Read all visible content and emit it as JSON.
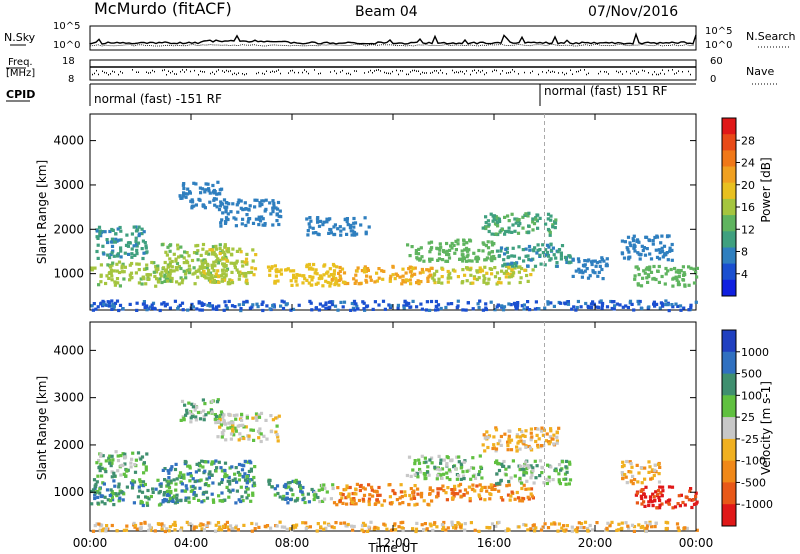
{
  "header": {
    "station": "McMurdo (fitACF)",
    "beam": "Beam 04",
    "date": "07/Nov/2016"
  },
  "top_panel_labels": {
    "nsky": "N.Sky",
    "nsearch": "N.Search",
    "freq": "Freq.",
    "freq_unit": "[MHz]",
    "nave": "Nave",
    "cpid": "CPID",
    "nsky_ticks": [
      "10^5",
      "10^0"
    ],
    "nsearch_ticks": [
      "10^5",
      "10^0"
    ],
    "freq_ticks": [
      "18",
      "8"
    ],
    "nave_ticks": [
      "60",
      "0"
    ]
  },
  "cpid_segments": [
    {
      "label": "normal (fast) -151 RF",
      "start_hour": 0
    },
    {
      "label": "normal (fast) 151 RF",
      "start_hour": 18
    }
  ],
  "chart_data": [
    {
      "type": "heatmap",
      "name": "power",
      "ylabel": "Slant Range [km]",
      "xlabel": "",
      "x_ticks": [
        "00:00",
        "04:00",
        "08:00",
        "12:00",
        "16:00",
        "20:00",
        "00:00"
      ],
      "x_range_hours": [
        0,
        24
      ],
      "y_ticks": [
        "1000",
        "2000",
        "3000",
        "4000"
      ],
      "ylim": [
        180,
        4600
      ],
      "colorbar": {
        "label": "Power [dB]",
        "ticks": [
          "4",
          "8",
          "12",
          "16",
          "20",
          "24",
          "28"
        ],
        "colors": [
          "#1020e0",
          "#1a4fd0",
          "#2f7fbf",
          "#3fa07f",
          "#5fb45f",
          "#a5c53f",
          "#e8c020",
          "#f0a020",
          "#f07818",
          "#e84a18",
          "#e01818"
        ]
      },
      "bands": [
        {
          "t0": 0.0,
          "t1": 3.2,
          "r0": 750,
          "r1": 1300,
          "v": 14
        },
        {
          "t0": 0.2,
          "t1": 2.2,
          "r0": 1350,
          "r1": 2100,
          "v": 8
        },
        {
          "t0": 2.8,
          "t1": 5.5,
          "r0": 800,
          "r1": 1700,
          "v": 14
        },
        {
          "t0": 3.5,
          "t1": 5.2,
          "r0": 2500,
          "r1": 3100,
          "v": 6
        },
        {
          "t0": 4.4,
          "t1": 6.5,
          "r0": 800,
          "r1": 1600,
          "v": 16
        },
        {
          "t0": 5.0,
          "t1": 7.5,
          "r0": 2100,
          "r1": 2700,
          "v": 6
        },
        {
          "t0": 7.0,
          "t1": 10.0,
          "r0": 750,
          "r1": 1250,
          "v": 18
        },
        {
          "t0": 8.5,
          "t1": 11.0,
          "r0": 1900,
          "r1": 2300,
          "v": 6
        },
        {
          "t0": 9.5,
          "t1": 13.5,
          "r0": 800,
          "r1": 1200,
          "v": 20
        },
        {
          "t0": 12.5,
          "t1": 16.0,
          "r0": 1300,
          "r1": 1800,
          "v": 12
        },
        {
          "t0": 13.5,
          "t1": 17.5,
          "r0": 800,
          "r1": 1200,
          "v": 16
        },
        {
          "t0": 15.5,
          "t1": 18.5,
          "r0": 1900,
          "r1": 2400,
          "v": 10
        },
        {
          "t0": 16.0,
          "t1": 19.0,
          "r0": 1200,
          "r1": 1700,
          "v": 8
        },
        {
          "t0": 19.0,
          "t1": 20.5,
          "r0": 900,
          "r1": 1400,
          "v": 6
        },
        {
          "t0": 21.5,
          "t1": 24.0,
          "r0": 750,
          "r1": 1200,
          "v": 12
        },
        {
          "t0": 21.0,
          "t1": 23.0,
          "r0": 1300,
          "r1": 1900,
          "v": 6
        },
        {
          "t0": 0.0,
          "t1": 24.0,
          "r0": 200,
          "r1": 420,
          "v": 4
        }
      ]
    },
    {
      "type": "heatmap",
      "name": "velocity",
      "ylabel": "Slant Range [km]",
      "xlabel": "Time UT",
      "x_ticks": [
        "00:00",
        "04:00",
        "08:00",
        "12:00",
        "16:00",
        "20:00",
        "00:00"
      ],
      "x_range_hours": [
        0,
        24
      ],
      "y_ticks": [
        "1000",
        "2000",
        "3000",
        "4000"
      ],
      "ylim": [
        180,
        4600
      ],
      "colorbar": {
        "label": "Velocity [m s-1]",
        "ticks": [
          "1000",
          "500",
          "100",
          "25",
          "-25",
          "-100",
          "-500",
          "-1000"
        ],
        "colors": [
          "#2040c0",
          "#3070c0",
          "#3f8f6f",
          "#60c040",
          "#c8c8c8",
          "#f0b020",
          "#f08818",
          "#e85818",
          "#e01818"
        ]
      },
      "bands": [
        {
          "t0": 0.0,
          "t1": 3.2,
          "r0": 750,
          "r1": 1300,
          "v": 2
        },
        {
          "t0": 0.2,
          "t1": 2.2,
          "r0": 1350,
          "r1": 1900,
          "v": 3
        },
        {
          "t0": 2.8,
          "t1": 6.5,
          "r0": 800,
          "r1": 1700,
          "v": 2
        },
        {
          "t0": 3.5,
          "t1": 5.2,
          "r0": 2500,
          "r1": 3000,
          "v": 3
        },
        {
          "t0": 5.0,
          "t1": 7.5,
          "r0": 2100,
          "r1": 2700,
          "v": 4
        },
        {
          "t0": 7.0,
          "t1": 8.8,
          "r0": 800,
          "r1": 1300,
          "v": 2
        },
        {
          "t0": 8.8,
          "t1": 9.6,
          "r0": 800,
          "r1": 1200,
          "v": 3
        },
        {
          "t0": 9.6,
          "t1": 13.5,
          "r0": 750,
          "r1": 1200,
          "v": 6
        },
        {
          "t0": 12.5,
          "t1": 15.5,
          "r0": 1300,
          "r1": 1800,
          "v": 3
        },
        {
          "t0": 13.5,
          "t1": 17.5,
          "r0": 850,
          "r1": 1200,
          "v": 6
        },
        {
          "t0": 15.5,
          "t1": 18.5,
          "r0": 1900,
          "r1": 2400,
          "v": 5
        },
        {
          "t0": 16.0,
          "t1": 19.0,
          "r0": 1200,
          "r1": 1700,
          "v": 3
        },
        {
          "t0": 21.5,
          "t1": 24.0,
          "r0": 700,
          "r1": 1150,
          "v": 8
        },
        {
          "t0": 21.0,
          "t1": 22.5,
          "r0": 1200,
          "r1": 1700,
          "v": 5
        },
        {
          "t0": 0.0,
          "t1": 24.0,
          "r0": 200,
          "r1": 400,
          "v": 5
        }
      ]
    }
  ]
}
